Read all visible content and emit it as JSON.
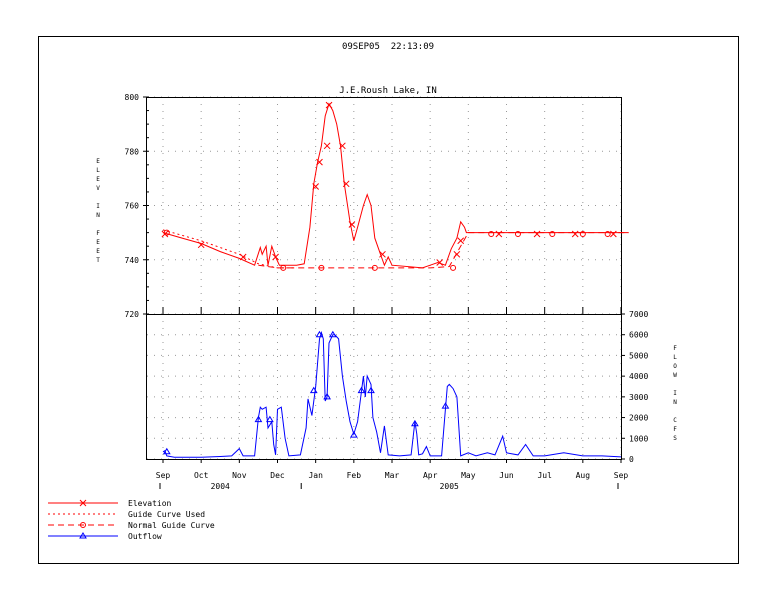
{
  "header": {
    "timestamp": "09SEP05  22:13:09"
  },
  "chart_data": {
    "type": "line",
    "title": "J.E.Roush Lake, IN",
    "months": [
      "Sep",
      "Oct",
      "Nov",
      "Dec",
      "Jan",
      "Feb",
      "Mar",
      "Apr",
      "May",
      "Jun",
      "Jul",
      "Aug",
      "Sep"
    ],
    "years": [
      "2004",
      "2005"
    ],
    "elevation_axis": {
      "label": "ELEV IN FEET",
      "ylim": [
        720,
        800
      ],
      "ticks": [
        720,
        740,
        760,
        780,
        800
      ]
    },
    "flow_axis": {
      "label": "FLOW IN CFS",
      "ylim": [
        0,
        7000
      ],
      "ticks": [
        0,
        1000,
        2000,
        3000,
        4000,
        5000,
        6000,
        7000
      ]
    },
    "grid": true,
    "legend_placement": "bottom-left",
    "series": [
      {
        "name": "Elevation",
        "color": "#ff0000",
        "style": "solid-x",
        "points": [
          [
            0.0,
            750
          ],
          [
            0.5,
            748
          ],
          [
            1.0,
            746
          ],
          [
            1.5,
            743
          ],
          [
            2.0,
            740.5
          ],
          [
            2.4,
            738
          ],
          [
            2.55,
            744.5
          ],
          [
            2.6,
            742
          ],
          [
            2.7,
            745
          ],
          [
            2.75,
            738
          ],
          [
            2.85,
            745
          ],
          [
            2.95,
            741
          ],
          [
            3.05,
            738
          ],
          [
            3.5,
            738
          ],
          [
            3.7,
            738.5
          ],
          [
            3.85,
            752
          ],
          [
            3.95,
            768
          ],
          [
            4.05,
            776
          ],
          [
            4.15,
            782
          ],
          [
            4.25,
            793
          ],
          [
            4.35,
            797.5
          ],
          [
            4.45,
            795
          ],
          [
            4.55,
            790
          ],
          [
            4.65,
            782
          ],
          [
            4.75,
            768
          ],
          [
            4.9,
            754
          ],
          [
            5.0,
            747
          ],
          [
            5.1,
            752
          ],
          [
            5.25,
            760
          ],
          [
            5.35,
            764
          ],
          [
            5.45,
            760
          ],
          [
            5.55,
            748
          ],
          [
            5.7,
            742
          ],
          [
            5.8,
            738
          ],
          [
            5.9,
            741
          ],
          [
            6.0,
            738
          ],
          [
            6.8,
            737
          ],
          [
            7.0,
            738
          ],
          [
            7.2,
            739
          ],
          [
            7.4,
            738
          ],
          [
            7.55,
            744
          ],
          [
            7.7,
            748
          ],
          [
            7.8,
            754
          ],
          [
            7.9,
            752
          ],
          [
            7.95,
            750
          ],
          [
            8.5,
            750
          ],
          [
            9.0,
            750
          ],
          [
            9.5,
            750
          ],
          [
            10.0,
            750
          ],
          [
            10.5,
            750
          ],
          [
            11.0,
            750
          ],
          [
            11.5,
            750
          ],
          [
            12.0,
            750
          ],
          [
            12.2,
            750
          ]
        ],
        "markers": [
          [
            0.05,
            749.5
          ],
          [
            1.0,
            745.5
          ],
          [
            2.1,
            741
          ],
          [
            2.95,
            741
          ],
          [
            4.0,
            767
          ],
          [
            4.1,
            776
          ],
          [
            4.3,
            782
          ],
          [
            4.35,
            797
          ],
          [
            4.7,
            782
          ],
          [
            4.8,
            768
          ],
          [
            4.95,
            753
          ],
          [
            5.75,
            742
          ],
          [
            7.25,
            739
          ],
          [
            7.7,
            742
          ],
          [
            7.8,
            747
          ],
          [
            8.8,
            749.5
          ],
          [
            9.8,
            749.5
          ],
          [
            10.8,
            749.5
          ],
          [
            11.8,
            749.5
          ]
        ]
      },
      {
        "name": "Guide Curve Used",
        "color": "#ff0000",
        "style": "dotted",
        "points": [
          [
            0.0,
            751
          ],
          [
            1.0,
            747
          ],
          [
            2.0,
            742
          ],
          [
            2.5,
            738.5
          ],
          [
            3.0,
            737
          ],
          [
            3.5,
            737
          ]
        ]
      },
      {
        "name": "Normal Guide Curve",
        "color": "#ff0000",
        "style": "dashed-circle",
        "points": [
          [
            2.5,
            738
          ],
          [
            3.0,
            737
          ],
          [
            4.0,
            737
          ],
          [
            5.0,
            737
          ],
          [
            6.0,
            737
          ],
          [
            7.0,
            737
          ],
          [
            7.5,
            737.5
          ],
          [
            8.0,
            750
          ],
          [
            12.2,
            750
          ]
        ],
        "markers": [
          [
            0.1,
            750
          ],
          [
            3.15,
            737
          ],
          [
            4.15,
            737
          ],
          [
            5.55,
            737
          ],
          [
            7.6,
            737
          ],
          [
            8.6,
            749.5
          ],
          [
            9.3,
            749.5
          ],
          [
            10.2,
            749.5
          ],
          [
            11.0,
            749.5
          ],
          [
            11.65,
            749.5
          ]
        ]
      },
      {
        "name": "Outflow",
        "color": "#0000ff",
        "style": "solid-triangle",
        "points": [
          [
            0.0,
            350
          ],
          [
            0.05,
            400
          ],
          [
            0.1,
            150
          ],
          [
            0.3,
            80
          ],
          [
            1.0,
            80
          ],
          [
            1.5,
            120
          ],
          [
            1.8,
            150
          ],
          [
            2.0,
            500
          ],
          [
            2.1,
            150
          ],
          [
            2.4,
            150
          ],
          [
            2.5,
            2000
          ],
          [
            2.55,
            2500
          ],
          [
            2.6,
            2400
          ],
          [
            2.7,
            2500
          ],
          [
            2.75,
            1500
          ],
          [
            2.85,
            1800
          ],
          [
            2.9,
            700
          ],
          [
            2.95,
            200
          ],
          [
            3.0,
            2400
          ],
          [
            3.1,
            2500
          ],
          [
            3.2,
            1000
          ],
          [
            3.3,
            150
          ],
          [
            3.6,
            200
          ],
          [
            3.75,
            1500
          ],
          [
            3.8,
            2900
          ],
          [
            3.9,
            2100
          ],
          [
            4.0,
            3500
          ],
          [
            4.1,
            5800
          ],
          [
            4.15,
            6100
          ],
          [
            4.2,
            5800
          ],
          [
            4.25,
            2800
          ],
          [
            4.3,
            3000
          ],
          [
            4.35,
            5600
          ],
          [
            4.45,
            6000
          ],
          [
            4.5,
            6000
          ],
          [
            4.6,
            5800
          ],
          [
            4.7,
            4000
          ],
          [
            4.8,
            2800
          ],
          [
            4.9,
            1800
          ],
          [
            5.0,
            1200
          ],
          [
            5.1,
            1800
          ],
          [
            5.25,
            4000
          ],
          [
            5.3,
            3000
          ],
          [
            5.35,
            4000
          ],
          [
            5.45,
            3600
          ],
          [
            5.5,
            2000
          ],
          [
            5.6,
            1300
          ],
          [
            5.7,
            300
          ],
          [
            5.8,
            1600
          ],
          [
            5.9,
            200
          ],
          [
            6.2,
            150
          ],
          [
            6.5,
            200
          ],
          [
            6.6,
            1800
          ],
          [
            6.65,
            1200
          ],
          [
            6.7,
            200
          ],
          [
            6.8,
            250
          ],
          [
            6.9,
            600
          ],
          [
            7.0,
            150
          ],
          [
            7.3,
            150
          ],
          [
            7.4,
            2400
          ],
          [
            7.45,
            3500
          ],
          [
            7.5,
            3600
          ],
          [
            7.6,
            3400
          ],
          [
            7.7,
            3000
          ],
          [
            7.8,
            150
          ],
          [
            8.0,
            300
          ],
          [
            8.2,
            150
          ],
          [
            8.5,
            300
          ],
          [
            8.7,
            200
          ],
          [
            8.9,
            1100
          ],
          [
            9.0,
            300
          ],
          [
            9.3,
            200
          ],
          [
            9.5,
            700
          ],
          [
            9.7,
            150
          ],
          [
            10.0,
            150
          ],
          [
            10.5,
            300
          ],
          [
            11.0,
            150
          ],
          [
            11.5,
            150
          ],
          [
            12.0,
            100
          ]
        ],
        "markers": [
          [
            0.1,
            350
          ],
          [
            2.5,
            1900
          ],
          [
            2.8,
            1900
          ],
          [
            3.95,
            3300
          ],
          [
            4.1,
            6000
          ],
          [
            4.3,
            3000
          ],
          [
            4.45,
            6000
          ],
          [
            5.0,
            1150
          ],
          [
            5.2,
            3300
          ],
          [
            5.45,
            3300
          ],
          [
            6.6,
            1700
          ],
          [
            7.4,
            2550
          ]
        ]
      }
    ]
  }
}
